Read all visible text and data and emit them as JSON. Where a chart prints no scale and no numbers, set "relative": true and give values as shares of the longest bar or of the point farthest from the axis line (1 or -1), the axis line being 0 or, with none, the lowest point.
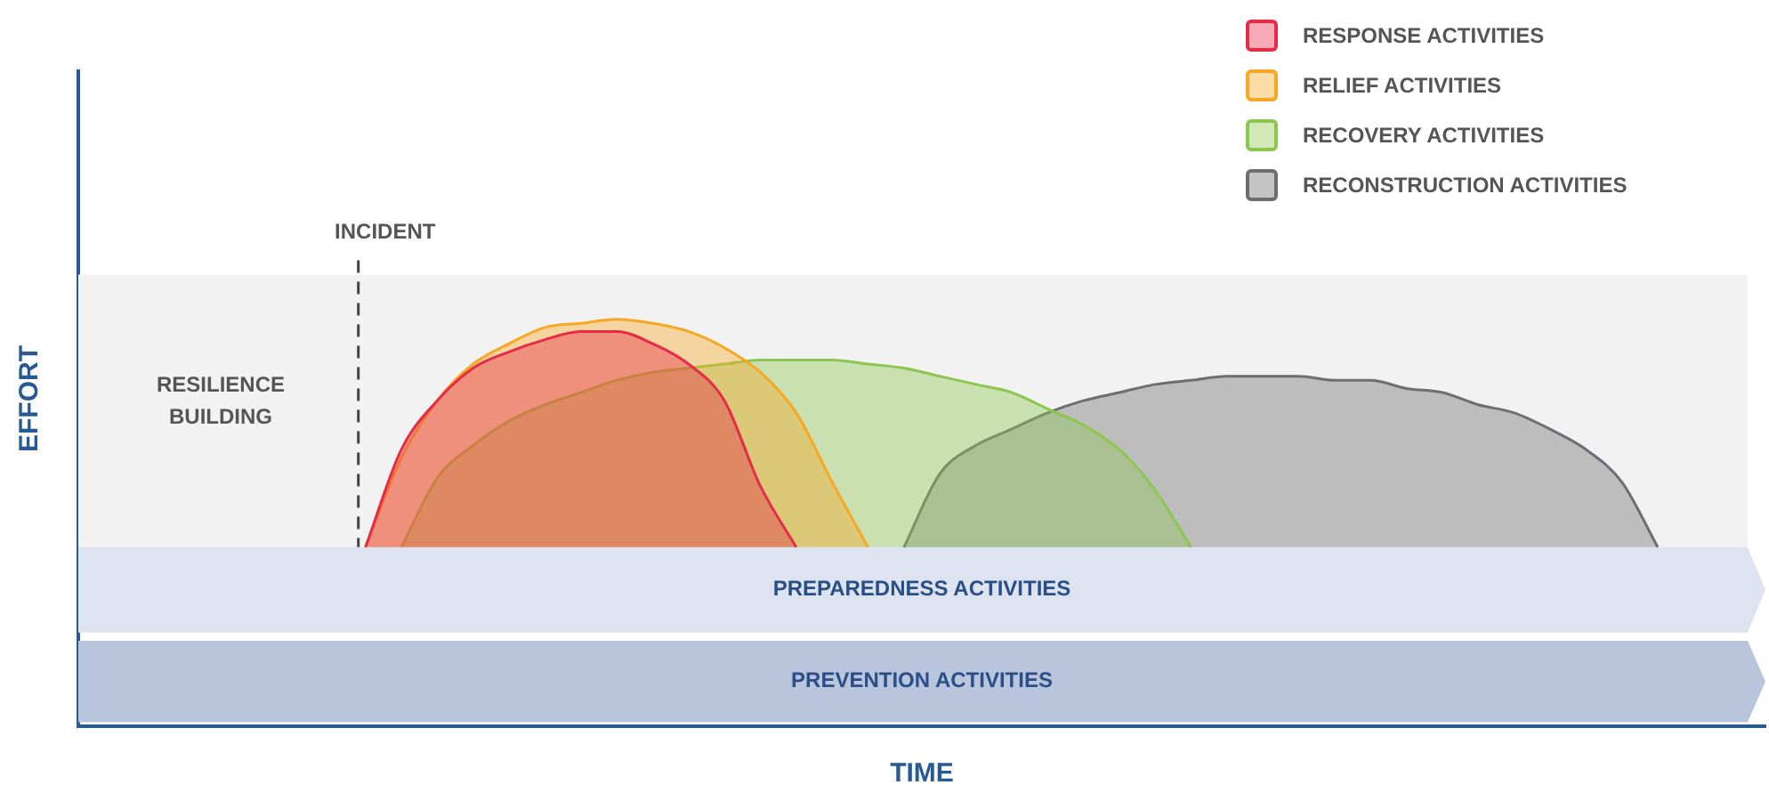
{
  "chart_data": {
    "type": "area",
    "relative": true,
    "xlabel": "TIME",
    "ylabel": "EFFORT",
    "legend": "top right",
    "grid": false,
    "categories": [
      null,
      null,
      null,
      null,
      null,
      null,
      null,
      null,
      null,
      null,
      null,
      null,
      null,
      null,
      null,
      null,
      null,
      null,
      null,
      null,
      null,
      null,
      null,
      null,
      null,
      null,
      null,
      null,
      null,
      null,
      null,
      null,
      null,
      null,
      null,
      null,
      null,
      null,
      null,
      null,
      null,
      null,
      null,
      null,
      null,
      null,
      null,
      null
    ],
    "series": [
      {
        "name": "RESPONSE ACTIVITIES",
        "color": "#e52b47",
        "values": [
          null,
          null,
          null,
          null,
          null,
          null,
          null,
          null,
          0.44,
          0.68,
          0.8,
          0.88,
          0.92,
          0.95,
          0.97,
          0.97,
          0.94,
          0.89,
          0.8,
          0.59,
          0.44,
          null,
          null,
          null,
          null,
          null,
          null,
          null,
          null,
          null,
          null,
          null,
          null,
          null,
          null,
          null,
          null,
          null,
          null,
          null,
          null,
          null,
          null,
          null,
          null,
          null,
          null,
          null
        ]
      },
      {
        "name": "RELIEF ACTIVITIES",
        "color": "#f7a823",
        "values": [
          null,
          null,
          null,
          null,
          null,
          null,
          null,
          null,
          0.44,
          0.66,
          0.8,
          0.89,
          0.94,
          0.98,
          0.99,
          1.0,
          0.99,
          0.97,
          0.93,
          0.87,
          0.77,
          0.6,
          0.44,
          null,
          null,
          null,
          null,
          null,
          null,
          null,
          null,
          null,
          null,
          null,
          null,
          null,
          null,
          null,
          null,
          null,
          null,
          null,
          null,
          null,
          null,
          null,
          null,
          null
        ]
      },
      {
        "name": "RECOVERY ACTIVITIES",
        "color": "#8dc64f",
        "values": [
          null,
          null,
          null,
          null,
          null,
          null,
          null,
          null,
          null,
          0.44,
          0.61,
          0.69,
          0.75,
          0.79,
          0.82,
          0.85,
          0.87,
          0.88,
          0.89,
          0.9,
          0.9,
          0.9,
          0.89,
          0.88,
          0.86,
          0.84,
          0.82,
          0.78,
          0.74,
          0.68,
          0.58,
          0.44,
          null,
          null,
          null,
          null,
          null,
          null,
          null,
          null,
          null,
          null,
          null,
          null,
          null,
          null,
          null,
          null
        ]
      },
      {
        "name": "RECONSTRUCTION ACTIVITIES",
        "color": "#6d6e71",
        "values": [
          null,
          null,
          null,
          null,
          null,
          null,
          null,
          null,
          null,
          null,
          null,
          null,
          null,
          null,
          null,
          null,
          null,
          null,
          null,
          null,
          null,
          null,
          null,
          0.44,
          0.62,
          0.69,
          0.73,
          0.77,
          0.8,
          0.82,
          0.84,
          0.85,
          0.86,
          0.86,
          0.86,
          0.85,
          0.85,
          0.83,
          0.82,
          0.79,
          0.77,
          0.73,
          0.68,
          0.6,
          0.44,
          null,
          null,
          null
        ]
      }
    ],
    "bands": [
      {
        "axis": "y",
        "from": 0.44,
        "to": 1.11,
        "label": "RESILIENCE BUILDING",
        "color": "#f2f2f2"
      },
      {
        "axis": "y",
        "from": 0.23,
        "to": 0.44,
        "label": "PREPAREDNESS ACTIVITIES",
        "color": "#dde3f0"
      },
      {
        "axis": "y",
        "from": 0.01,
        "to": 0.21,
        "label": "PREVENTION ACTIVITIES",
        "color": "#b9c4dd"
      }
    ],
    "annotations": [
      "INCIDENT"
    ]
  }
}
